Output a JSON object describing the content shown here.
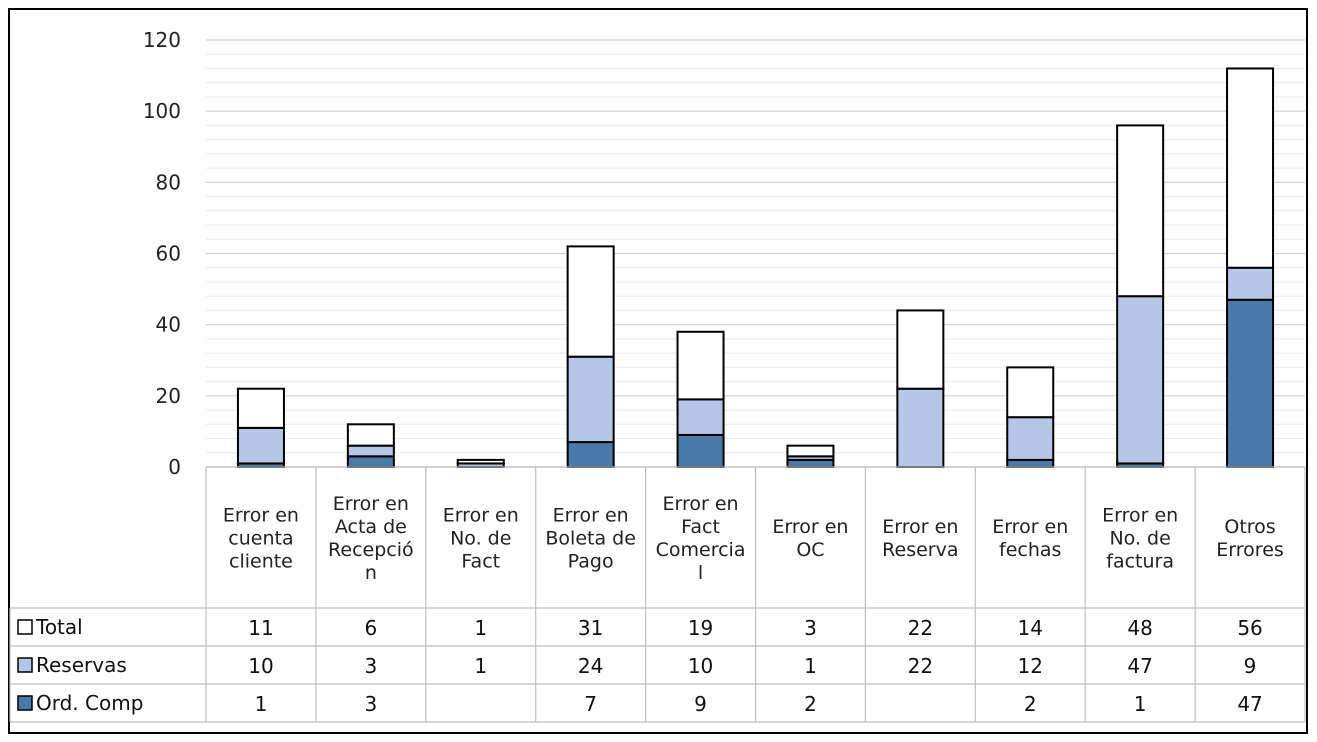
{
  "chart_data": {
    "type": "bar",
    "stacked": true,
    "categories": [
      [
        "Error en",
        "cuenta",
        "cliente"
      ],
      [
        "Error en",
        "Acta de",
        "Recepció",
        "n"
      ],
      [
        "Error en",
        "No. de",
        "Fact"
      ],
      [
        "Error en",
        "Boleta de",
        "Pago"
      ],
      [
        "Error en",
        "Fact",
        "Comercia",
        "l"
      ],
      [
        "Error en",
        "OC"
      ],
      [
        "Error en",
        "Reserva"
      ],
      [
        "Error en",
        "fechas"
      ],
      [
        "Error en",
        "No.  de",
        "factura"
      ],
      [
        "Otros",
        "Errores"
      ]
    ],
    "series": [
      {
        "name": "Ord. Comp",
        "color": "#4a7aaa",
        "values": [
          1,
          3,
          null,
          7,
          9,
          2,
          null,
          2,
          1,
          47
        ]
      },
      {
        "name": "Reservas",
        "color": "#b4c7e7",
        "values": [
          10,
          3,
          1,
          24,
          10,
          1,
          22,
          12,
          47,
          9
        ]
      },
      {
        "name": "Total",
        "color": "#ffffff",
        "values": [
          11,
          6,
          1,
          31,
          19,
          3,
          22,
          14,
          48,
          56
        ]
      }
    ],
    "table_order": [
      "Total",
      "Reservas",
      "Ord. Comp"
    ],
    "ylim": [
      0,
      120
    ],
    "yticks": [
      0,
      20,
      40,
      60,
      80,
      100,
      120
    ],
    "grid": true,
    "legend": "data-table"
  }
}
